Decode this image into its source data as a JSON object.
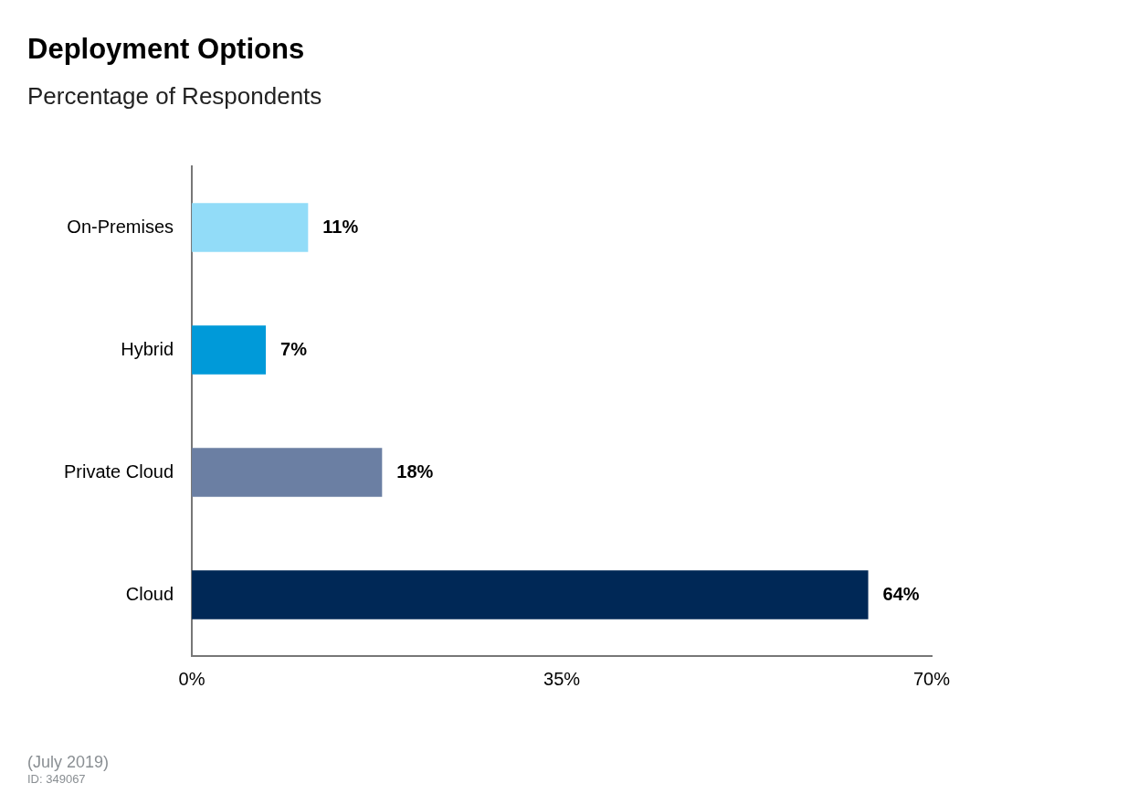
{
  "chart_data": {
    "type": "bar",
    "orientation": "horizontal",
    "title": "Deployment Options",
    "subtitle": "Percentage of Respondents",
    "categories": [
      "On-Premises",
      "Hybrid",
      "Private Cloud",
      "Cloud"
    ],
    "values": [
      11,
      7,
      18,
      64
    ],
    "colors": [
      "#92dcf8",
      "#009ad9",
      "#6b7fa3",
      "#002856"
    ],
    "value_labels": [
      "11%",
      "7%",
      "18%",
      "64%"
    ],
    "xlim": [
      0,
      70
    ],
    "xticks": [
      {
        "value": 0,
        "label": "0%"
      },
      {
        "value": 35,
        "label": "35%"
      },
      {
        "value": 70,
        "label": "70%"
      }
    ],
    "grid": false,
    "legend": false,
    "annotations": [
      "(July 2019)",
      "ID: 349067"
    ]
  }
}
